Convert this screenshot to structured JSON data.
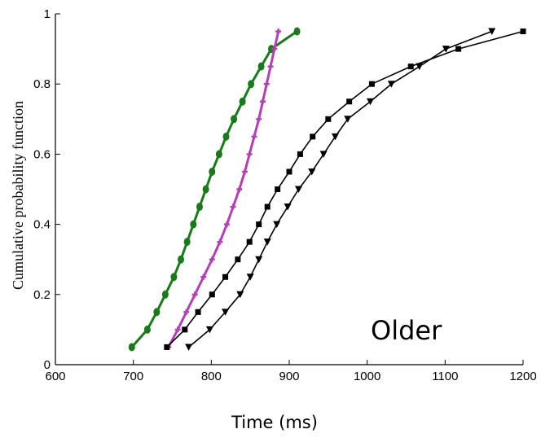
{
  "chart_data": {
    "type": "line",
    "xlabel": "Time (ms)",
    "ylabel": "Cumulative probability function",
    "xlim": [
      600,
      1200
    ],
    "ylim": [
      0,
      1
    ],
    "xticks": [
      "600",
      "700",
      "800",
      "900",
      "1000",
      "1100",
      "1200"
    ],
    "yticks": [
      "0",
      "0.2",
      "0.4",
      "0.6",
      "0.8",
      "1"
    ],
    "annotation": "Older",
    "grid": false,
    "series": [
      {
        "color": "#1a7a1a",
        "marker": "circle",
        "x": [
          698,
          718,
          730,
          741,
          752,
          761,
          769,
          777,
          785,
          793,
          801,
          810,
          819,
          829,
          840,
          851,
          864,
          877,
          910
        ],
        "y": [
          0.05,
          0.1,
          0.15,
          0.2,
          0.25,
          0.3,
          0.35,
          0.4,
          0.45,
          0.5,
          0.55,
          0.6,
          0.65,
          0.7,
          0.75,
          0.8,
          0.85,
          0.9,
          0.95
        ]
      },
      {
        "color": "#b43fb4",
        "marker": "plus",
        "x": [
          745,
          757,
          768,
          779,
          790,
          801,
          811,
          820,
          828,
          836,
          843,
          849,
          855,
          861,
          866,
          871,
          876,
          881,
          886
        ],
        "y": [
          0.05,
          0.1,
          0.15,
          0.2,
          0.25,
          0.3,
          0.35,
          0.4,
          0.45,
          0.5,
          0.55,
          0.6,
          0.65,
          0.7,
          0.75,
          0.8,
          0.85,
          0.9,
          0.95
        ]
      },
      {
        "color": "#000000",
        "marker": "square",
        "x": [
          743,
          766,
          783,
          801,
          818,
          834,
          849,
          861,
          872,
          885,
          900,
          914,
          930,
          950,
          977,
          1006,
          1056,
          1117,
          1200
        ],
        "y": [
          0.05,
          0.1,
          0.15,
          0.2,
          0.25,
          0.3,
          0.35,
          0.4,
          0.45,
          0.5,
          0.55,
          0.6,
          0.65,
          0.7,
          0.75,
          0.8,
          0.85,
          0.9,
          0.95
        ]
      },
      {
        "color": "#000000",
        "marker": "triangle-down",
        "x": [
          771,
          798,
          818,
          837,
          850,
          861,
          872,
          884,
          898,
          912,
          929,
          944,
          959,
          975,
          1004,
          1031,
          1067,
          1101,
          1160
        ],
        "y": [
          0.05,
          0.1,
          0.15,
          0.2,
          0.25,
          0.3,
          0.35,
          0.4,
          0.45,
          0.5,
          0.55,
          0.6,
          0.65,
          0.7,
          0.75,
          0.8,
          0.85,
          0.9,
          0.95
        ]
      }
    ]
  }
}
